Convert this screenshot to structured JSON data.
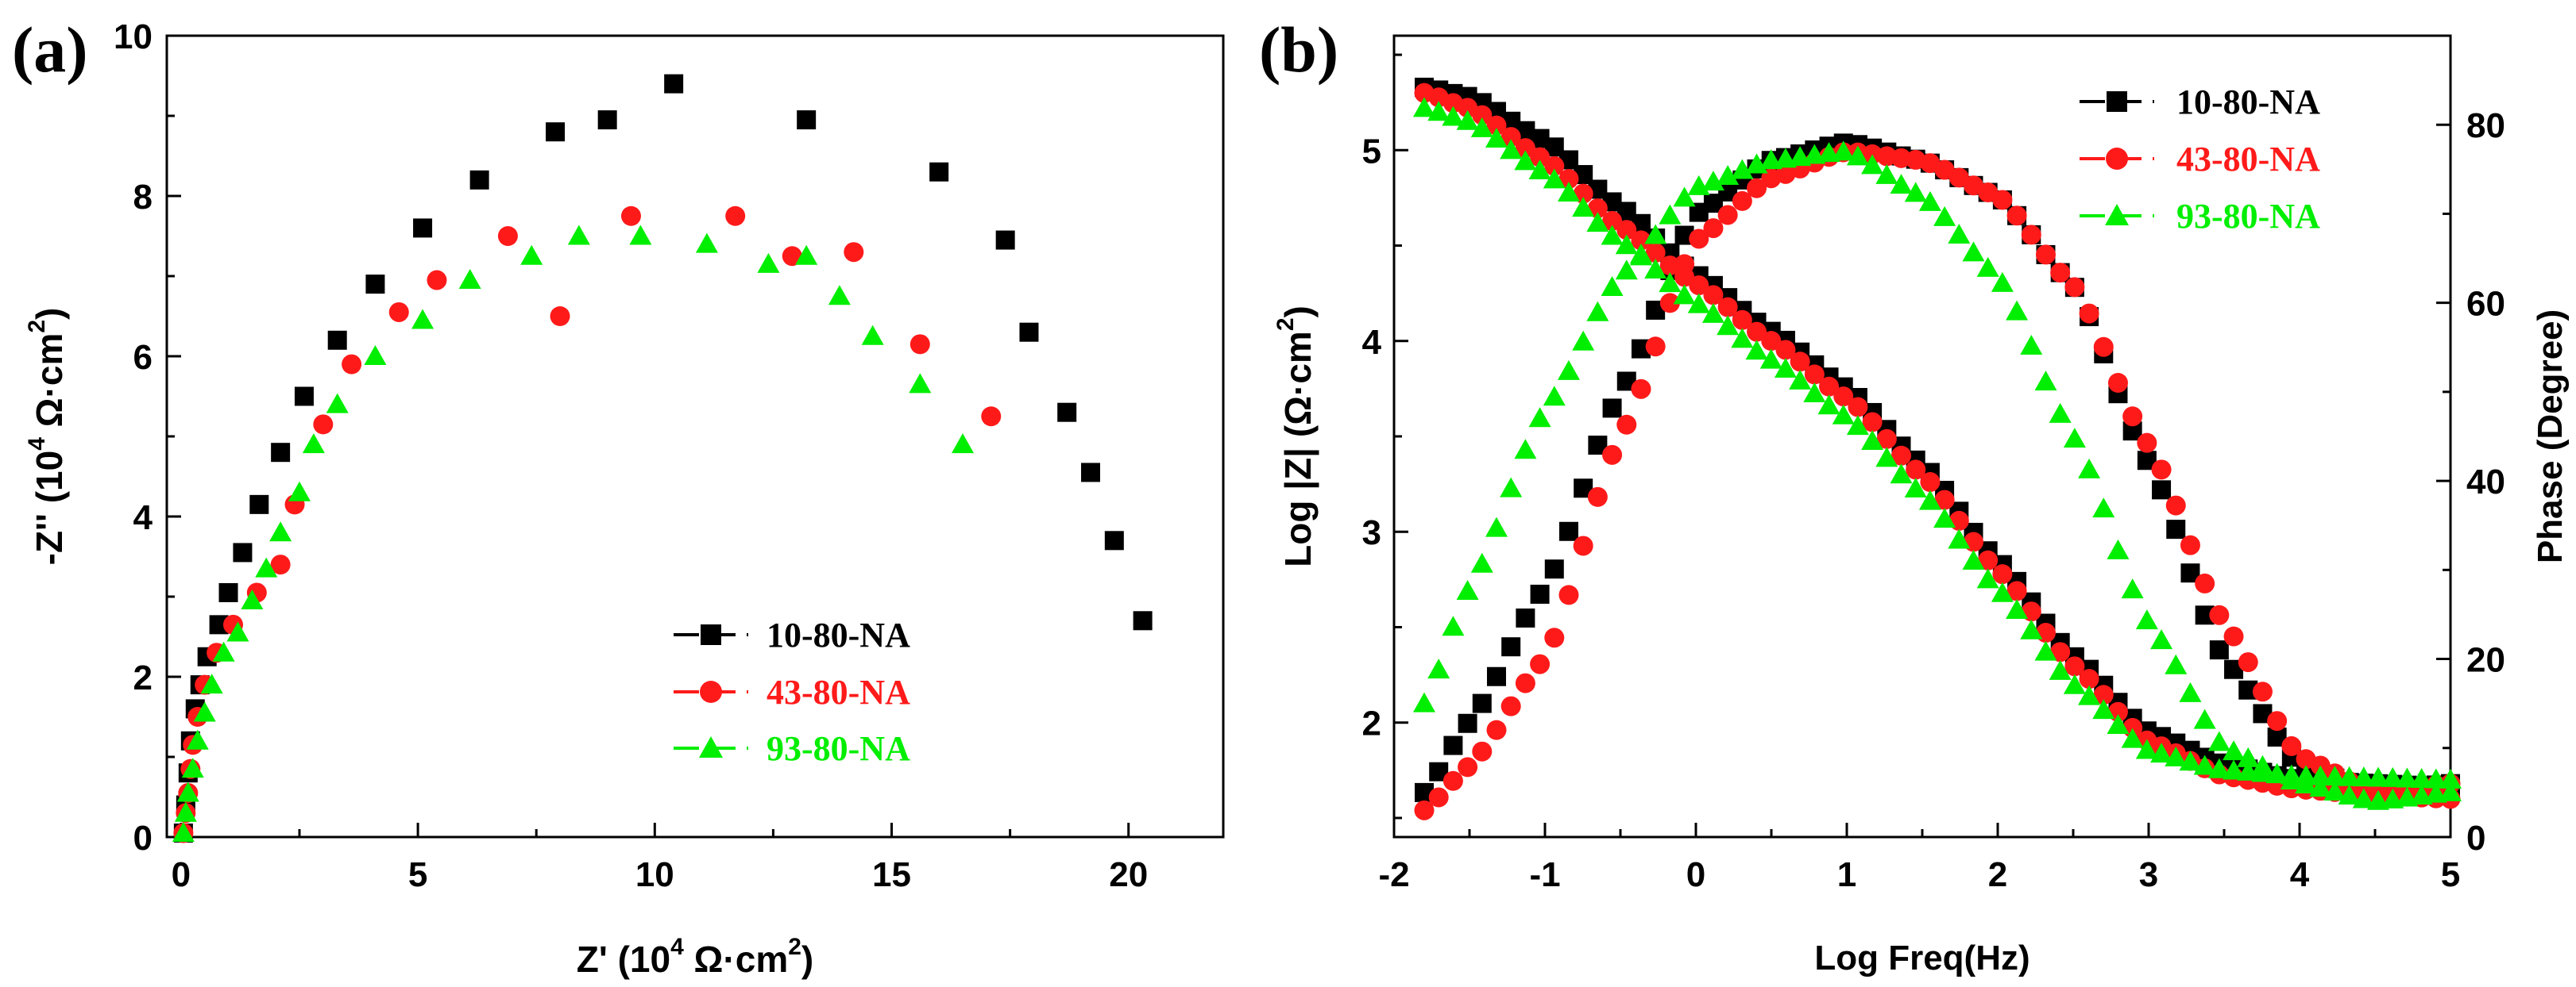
{
  "colors": {
    "s10": "#000000",
    "s43": "#ff1a1a",
    "s93": "#00ee00",
    "axis": "#000000"
  },
  "panels": {
    "a": {
      "label": "(a)"
    },
    "b": {
      "label": "(b)"
    }
  },
  "chart_data": [
    {
      "panel": "a",
      "type": "scatter",
      "title": "",
      "xlabel_pre": "Z' (10",
      "xlabel_sup1": "4",
      "xlabel_mid": " Ω·cm",
      "xlabel_sup2": "2",
      "xlabel_post": ")",
      "ylabel_pre": "-Z'' (10",
      "ylabel_sup1": "4",
      "ylabel_mid": " Ω·cm",
      "ylabel_sup2": "2",
      "ylabel_post": ")",
      "xlim": [
        -0.3,
        22
      ],
      "ylim": [
        0,
        10
      ],
      "xticks": [
        0,
        5,
        10,
        15,
        20
      ],
      "yticks": [
        0,
        2,
        4,
        6,
        8,
        10
      ],
      "legend_position": "bottom-right",
      "series": [
        {
          "name": "10-80-NA",
          "marker": "square",
          "points": [
            [
              0.05,
              0.05
            ],
            [
              0.1,
              0.4
            ],
            [
              0.15,
              0.8
            ],
            [
              0.2,
              1.2
            ],
            [
              0.3,
              1.6
            ],
            [
              0.4,
              1.9
            ],
            [
              0.55,
              2.25
            ],
            [
              0.8,
              2.65
            ],
            [
              1.0,
              3.05
            ],
            [
              1.3,
              3.55
            ],
            [
              1.65,
              4.15
            ],
            [
              2.1,
              4.8
            ],
            [
              2.6,
              5.5
            ],
            [
              3.3,
              6.2
            ],
            [
              4.1,
              6.9
            ],
            [
              5.1,
              7.6
            ],
            [
              6.3,
              8.2
            ],
            [
              7.9,
              8.8
            ],
            [
              9.0,
              8.95
            ],
            [
              10.4,
              9.4
            ],
            [
              13.2,
              8.95
            ],
            [
              16.0,
              8.3
            ],
            [
              17.4,
              7.45
            ],
            [
              17.9,
              6.3
            ],
            [
              18.7,
              5.3
            ],
            [
              19.2,
              4.55
            ],
            [
              19.7,
              3.7
            ],
            [
              20.3,
              2.7
            ]
          ]
        },
        {
          "name": "43-80-NA",
          "marker": "circle",
          "points": [
            [
              0.05,
              0.05
            ],
            [
              0.1,
              0.3
            ],
            [
              0.15,
              0.55
            ],
            [
              0.2,
              0.85
            ],
            [
              0.25,
              1.15
            ],
            [
              0.35,
              1.5
            ],
            [
              0.5,
              1.9
            ],
            [
              0.75,
              2.3
            ],
            [
              1.1,
              2.65
            ],
            [
              1.6,
              3.05
            ],
            [
              2.1,
              3.4
            ],
            [
              2.4,
              4.15
            ],
            [
              3.0,
              5.15
            ],
            [
              3.6,
              5.9
            ],
            [
              4.6,
              6.55
            ],
            [
              5.4,
              6.95
            ],
            [
              6.9,
              7.5
            ],
            [
              8.0,
              6.5
            ],
            [
              9.5,
              7.75
            ],
            [
              11.7,
              7.75
            ],
            [
              12.9,
              7.25
            ],
            [
              14.2,
              7.3
            ],
            [
              15.6,
              6.15
            ],
            [
              17.1,
              5.25
            ]
          ]
        },
        {
          "name": "93-80-NA",
          "marker": "triangle",
          "points": [
            [
              0.05,
              0.05
            ],
            [
              0.1,
              0.3
            ],
            [
              0.15,
              0.55
            ],
            [
              0.25,
              0.85
            ],
            [
              0.35,
              1.2
            ],
            [
              0.5,
              1.55
            ],
            [
              0.65,
              1.9
            ],
            [
              0.9,
              2.3
            ],
            [
              1.2,
              2.55
            ],
            [
              1.5,
              2.95
            ],
            [
              1.8,
              3.35
            ],
            [
              2.1,
              3.8
            ],
            [
              2.5,
              4.3
            ],
            [
              2.8,
              4.9
            ],
            [
              3.3,
              5.4
            ],
            [
              4.1,
              6.0
            ],
            [
              5.1,
              6.45
            ],
            [
              6.1,
              6.95
            ],
            [
              7.4,
              7.25
            ],
            [
              8.4,
              7.5
            ],
            [
              9.7,
              7.5
            ],
            [
              11.1,
              7.4
            ],
            [
              12.4,
              7.15
            ],
            [
              13.2,
              7.25
            ],
            [
              13.9,
              6.75
            ],
            [
              14.6,
              6.25
            ],
            [
              15.6,
              5.65
            ],
            [
              16.5,
              4.9
            ]
          ]
        }
      ]
    },
    {
      "panel": "b",
      "type": "scatter",
      "title": "",
      "xlabel": "Log Freq(Hz)",
      "ylabel_pre": "Log |Z| (Ω·cm",
      "ylabel_sup": "2",
      "ylabel_post": ")",
      "y2label": "Phase (Degree)",
      "xlim": [
        -2,
        5
      ],
      "ylim": [
        1.4,
        5.6
      ],
      "y2lim": [
        0,
        90
      ],
      "xticks": [
        -2,
        -1,
        0,
        1,
        2,
        3,
        4,
        5
      ],
      "yticks": [
        2,
        3,
        4,
        5
      ],
      "y2ticks": [
        0,
        20,
        40,
        60,
        80
      ],
      "legend_position": "top-right",
      "series": [
        {
          "name": "10-80-NA",
          "marker": "square",
          "impedance_anchors": [
            [
              -1.8,
              5.33
            ],
            [
              -1.5,
              5.28
            ],
            [
              -1.0,
              5.05
            ],
            [
              -0.5,
              4.7
            ],
            [
              0.0,
              4.35
            ],
            [
              0.5,
              4.05
            ],
            [
              1.0,
              3.75
            ],
            [
              1.5,
              3.35
            ],
            [
              2.0,
              2.85
            ],
            [
              2.5,
              2.35
            ],
            [
              3.0,
              1.95
            ],
            [
              3.5,
              1.78
            ],
            [
              4.0,
              1.7
            ],
            [
              4.5,
              1.68
            ],
            [
              5.0,
              1.66
            ]
          ],
          "phase_anchors": [
            [
              -1.8,
              5
            ],
            [
              -1.5,
              13
            ],
            [
              -1.0,
              28
            ],
            [
              -0.5,
              50
            ],
            [
              0.0,
              70
            ],
            [
              0.5,
              76
            ],
            [
              1.0,
              78
            ],
            [
              1.5,
              76
            ],
            [
              2.0,
              72
            ],
            [
              2.5,
              62
            ],
            [
              3.0,
              42
            ],
            [
              3.5,
              20
            ],
            [
              4.0,
              8
            ],
            [
              4.5,
              5
            ],
            [
              5.0,
              6
            ]
          ]
        },
        {
          "name": "43-80-NA",
          "marker": "circle",
          "impedance_anchors": [
            [
              -1.8,
              5.3
            ],
            [
              -1.5,
              5.22
            ],
            [
              -1.0,
              4.95
            ],
            [
              -0.5,
              4.6
            ],
            [
              0.0,
              4.3
            ],
            [
              0.5,
              4.0
            ],
            [
              1.0,
              3.7
            ],
            [
              1.5,
              3.3
            ],
            [
              2.0,
              2.8
            ],
            [
              2.5,
              2.3
            ],
            [
              3.0,
              1.9
            ],
            [
              3.5,
              1.72
            ],
            [
              4.0,
              1.65
            ],
            [
              4.5,
              1.62
            ],
            [
              5.0,
              1.6
            ]
          ],
          "phase_anchors": [
            [
              -1.8,
              3
            ],
            [
              -1.5,
              8
            ],
            [
              -1.0,
              20
            ],
            [
              -0.5,
              45
            ],
            [
              0.0,
              67
            ],
            [
              0.5,
              74
            ],
            [
              1.0,
              77
            ],
            [
              1.5,
              76
            ],
            [
              2.0,
              72
            ],
            [
              2.5,
              62
            ],
            [
              3.0,
              44
            ],
            [
              3.5,
              24
            ],
            [
              4.0,
              9
            ],
            [
              4.5,
              5
            ],
            [
              5.0,
              6
            ]
          ]
        },
        {
          "name": "93-80-NA",
          "marker": "triangle",
          "impedance_anchors": [
            [
              -1.8,
              5.22
            ],
            [
              -1.5,
              5.15
            ],
            [
              -1.0,
              4.88
            ],
            [
              -0.5,
              4.52
            ],
            [
              0.0,
              4.2
            ],
            [
              0.5,
              3.9
            ],
            [
              1.0,
              3.6
            ],
            [
              1.5,
              3.2
            ],
            [
              2.0,
              2.7
            ],
            [
              2.5,
              2.2
            ],
            [
              3.0,
              1.85
            ],
            [
              3.5,
              1.75
            ],
            [
              4.0,
              1.72
            ],
            [
              4.5,
              1.71
            ],
            [
              5.0,
              1.7
            ]
          ],
          "phase_anchors": [
            [
              -1.8,
              15
            ],
            [
              -1.5,
              28
            ],
            [
              -1.0,
              48
            ],
            [
              -0.5,
              63
            ],
            [
              0.0,
              73
            ],
            [
              0.5,
              76
            ],
            [
              1.0,
              77
            ],
            [
              1.5,
              72
            ],
            [
              2.0,
              63
            ],
            [
              2.5,
              45
            ],
            [
              3.0,
              24
            ],
            [
              3.5,
              10
            ],
            [
              4.0,
              6
            ],
            [
              4.5,
              4
            ],
            [
              5.0,
              5
            ]
          ]
        }
      ]
    }
  ]
}
